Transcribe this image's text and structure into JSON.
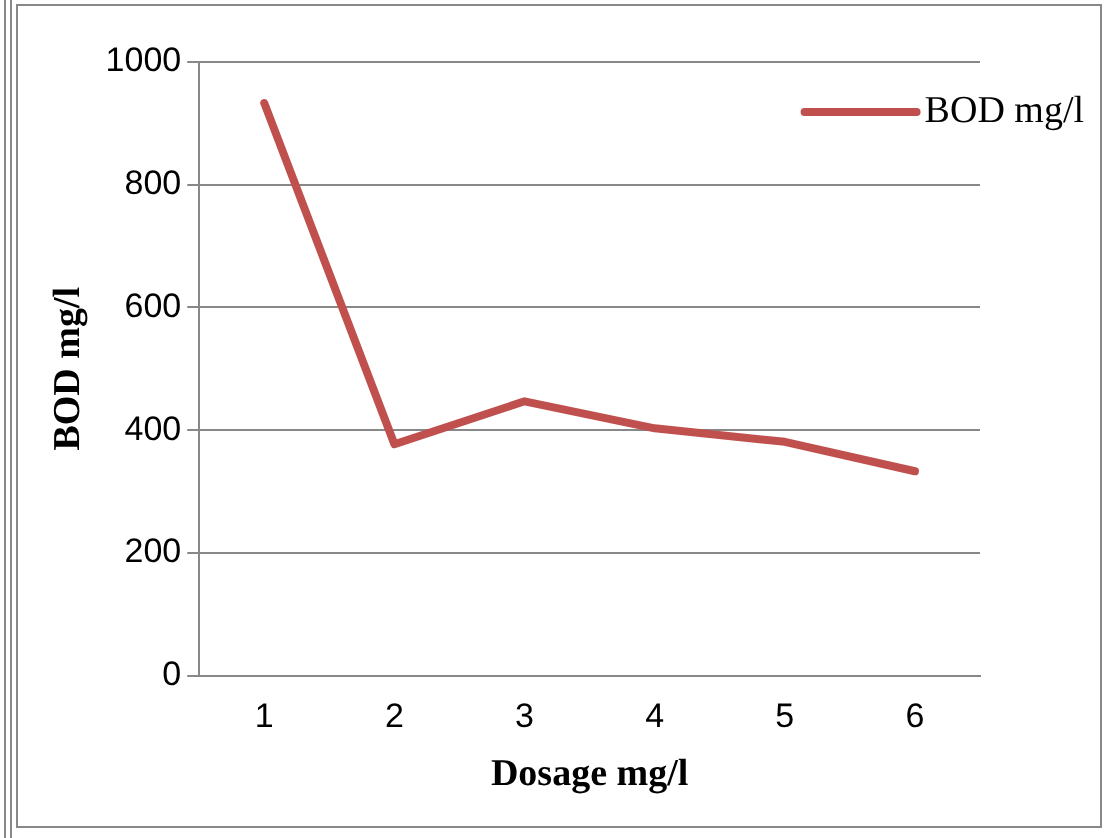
{
  "chart_data": {
    "type": "line",
    "xlabel": "Dosage mg/l",
    "ylabel": "BOD mg/l",
    "categories": [
      "1",
      "2",
      "3",
      "4",
      "5",
      "6"
    ],
    "series": [
      {
        "name": "BOD mg/l",
        "color": "#c0504d",
        "values": [
          933,
          377,
          447,
          403,
          381,
          333
        ]
      }
    ],
    "ylim": [
      0,
      1000
    ],
    "yticks": [
      0,
      200,
      400,
      600,
      800,
      1000
    ],
    "grid": "y",
    "legend": "top right",
    "marker": "none",
    "line_style": "solid"
  }
}
